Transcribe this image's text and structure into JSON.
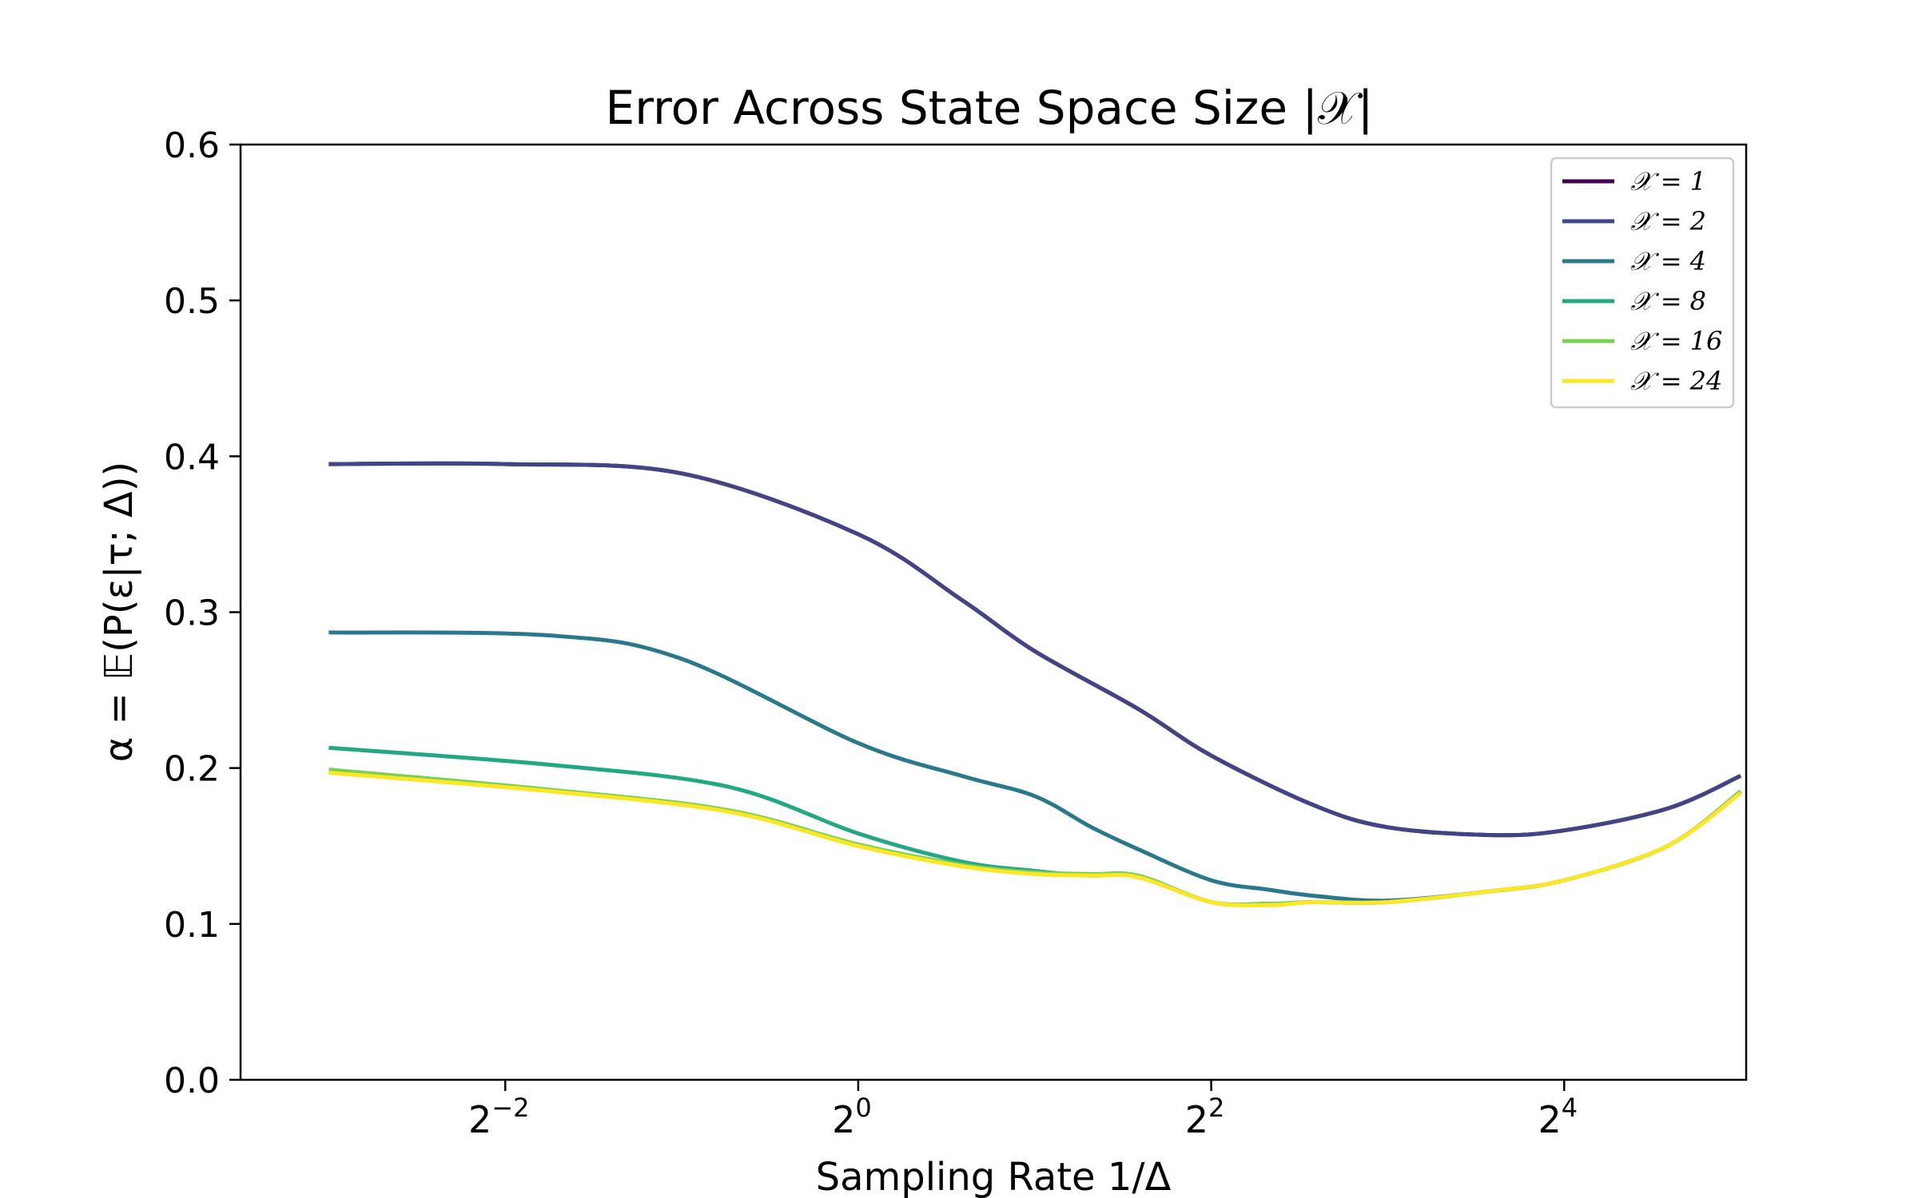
{
  "chart_data": {
    "type": "line",
    "title": "Error Across State Space Size |𝒳|",
    "xlabel": "Sampling Rate 1/Δ",
    "ylabel": "α = 𝔼(P(ε|τ; Δ))",
    "x_scale": "log2",
    "x_tick_bases": [
      "2",
      "2",
      "2",
      "2"
    ],
    "x_tick_exponents": [
      "−2",
      "0",
      "2",
      "4"
    ],
    "x_tick_values": [
      0.25,
      1,
      4,
      16
    ],
    "xlim": [
      0.0884,
      32.7
    ],
    "ylim": [
      0.0,
      0.6
    ],
    "y_ticks": [
      "0.0",
      "0.1",
      "0.2",
      "0.3",
      "0.4",
      "0.5",
      "0.6"
    ],
    "y_tick_values": [
      0.0,
      0.1,
      0.2,
      0.3,
      0.4,
      0.5,
      0.6
    ],
    "grid": false,
    "legend_position": "top-right",
    "series": [
      {
        "name": "𝒳 = 1",
        "color": "#440154",
        "x": [
          0.125,
          0.25,
          0.5,
          1,
          1.5,
          2,
          3,
          4,
          6,
          8,
          12,
          16,
          24,
          32
        ],
        "y": [
          0.395,
          0.395,
          0.389,
          0.35,
          0.308,
          0.275,
          0.238,
          0.208,
          0.176,
          0.162,
          0.157,
          0.16,
          0.174,
          0.195
        ]
      },
      {
        "name": "𝒳 = 2",
        "color": "#414487",
        "x": [
          0.125,
          0.25,
          0.5,
          1,
          1.5,
          2,
          3,
          4,
          6,
          8,
          12,
          16,
          24,
          32
        ],
        "y": [
          0.395,
          0.395,
          0.389,
          0.35,
          0.308,
          0.275,
          0.238,
          0.208,
          0.176,
          0.162,
          0.157,
          0.16,
          0.174,
          0.195
        ]
      },
      {
        "name": "𝒳 = 4",
        "color": "#2a788e",
        "x": [
          0.125,
          0.3,
          0.5,
          1,
          1.5,
          2,
          2.5,
          3,
          4,
          5,
          6,
          8,
          12,
          16,
          24,
          32
        ],
        "y": [
          0.287,
          0.285,
          0.27,
          0.216,
          0.195,
          0.182,
          0.162,
          0.148,
          0.128,
          0.122,
          0.118,
          0.115,
          0.121,
          0.128,
          0.15,
          0.185
        ]
      },
      {
        "name": "𝒳 = 8",
        "color": "#22a884",
        "x": [
          0.125,
          0.3,
          0.6,
          1,
          1.5,
          2,
          2.5,
          3,
          4,
          5,
          6,
          8,
          12,
          16,
          24,
          32
        ],
        "y": [
          0.213,
          0.202,
          0.188,
          0.158,
          0.14,
          0.134,
          0.131,
          0.131,
          0.114,
          0.113,
          0.114,
          0.114,
          0.121,
          0.128,
          0.15,
          0.185
        ]
      },
      {
        "name": "𝒳 = 16",
        "color": "#7ad151",
        "x": [
          0.125,
          0.3,
          0.6,
          1,
          1.5,
          2,
          2.5,
          3,
          4,
          5,
          6,
          8,
          12,
          16,
          24,
          32
        ],
        "y": [
          0.199,
          0.186,
          0.173,
          0.151,
          0.138,
          0.133,
          0.132,
          0.131,
          0.114,
          0.113,
          0.114,
          0.114,
          0.121,
          0.128,
          0.15,
          0.185
        ]
      },
      {
        "name": "𝒳 = 24",
        "color": "#fde725",
        "x": [
          0.125,
          0.3,
          0.6,
          1,
          1.5,
          2,
          2.5,
          3,
          4,
          5,
          6,
          8,
          12,
          16,
          24,
          32
        ],
        "y": [
          0.197,
          0.185,
          0.172,
          0.15,
          0.137,
          0.132,
          0.131,
          0.13,
          0.114,
          0.112,
          0.114,
          0.114,
          0.121,
          0.128,
          0.15,
          0.184
        ]
      }
    ]
  }
}
